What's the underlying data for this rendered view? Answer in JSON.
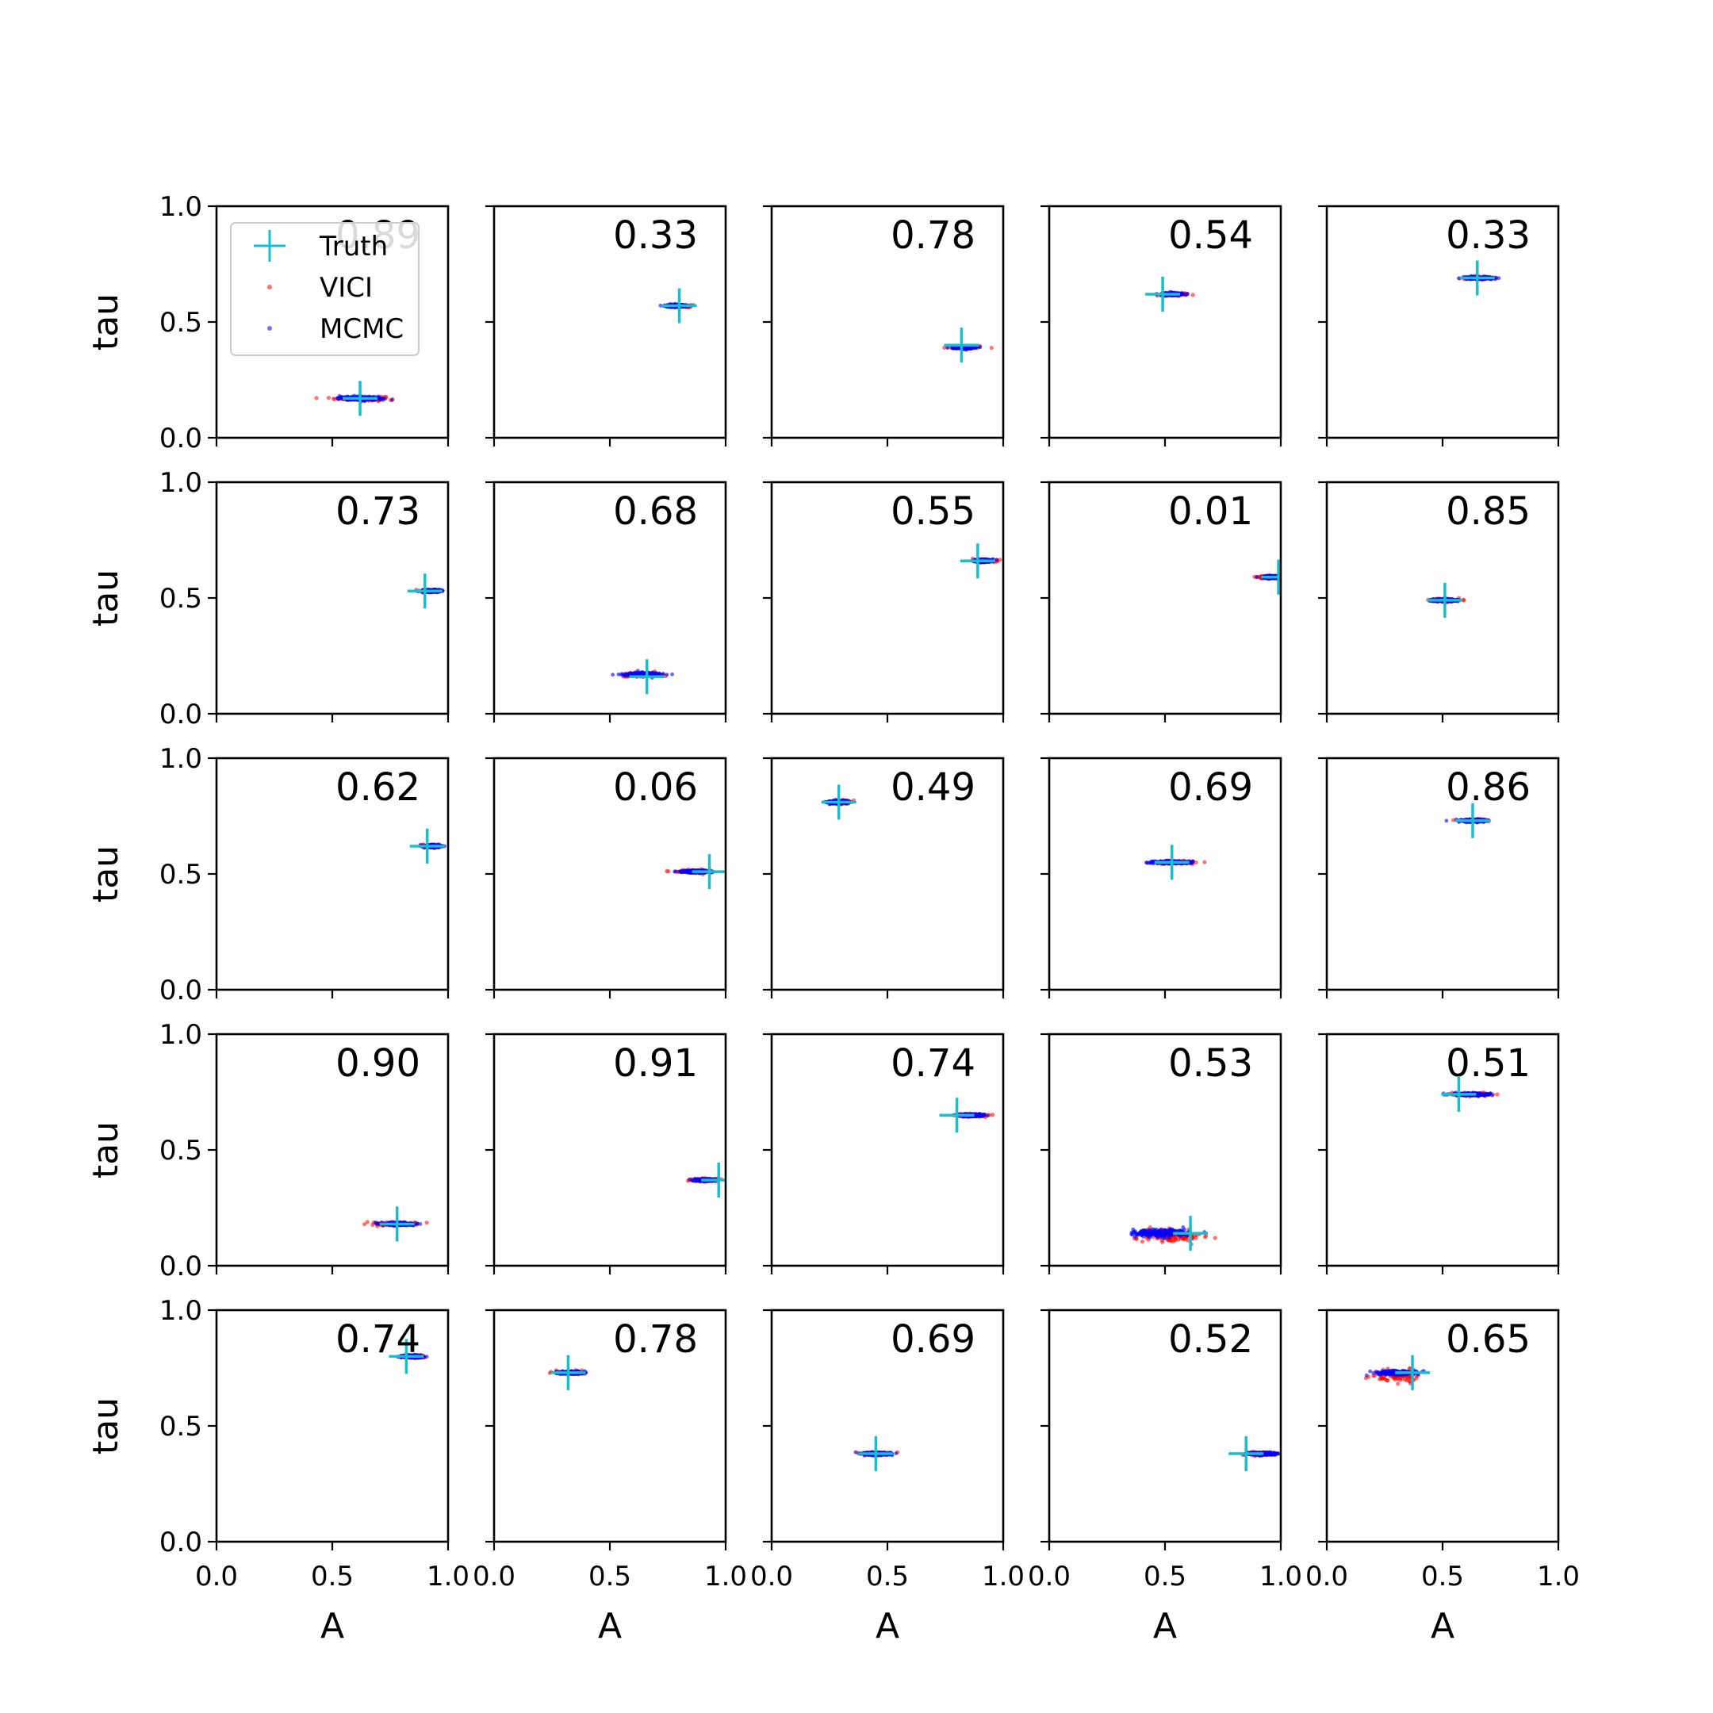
{
  "chart_data": {
    "type": "scatter",
    "layout": {
      "rows": 5,
      "cols": 5
    },
    "xlabel": "A",
    "ylabel": "tau",
    "xlim": [
      0,
      1
    ],
    "ylim": [
      0,
      1
    ],
    "xticks": [
      "0.0",
      "0.5",
      "1.0"
    ],
    "yticks": [
      "0.0",
      "0.5",
      "1.0"
    ],
    "legend": {
      "placement": "upper-left",
      "panel": 0,
      "entries": [
        {
          "label": "Truth",
          "marker": "plus",
          "color": "#17becf"
        },
        {
          "label": "VICI",
          "marker": "dot",
          "color": "#ff0000"
        },
        {
          "label": "MCMC",
          "marker": "dot",
          "color": "#0000ff"
        }
      ]
    },
    "colors": {
      "truth": "#17becf",
      "vici": "#ff0000",
      "mcmc": "#0000ff",
      "axes": "#000000",
      "background": "#ffffff"
    },
    "panels": [
      {
        "value": "0.89",
        "truth": [
          0.62,
          0.17
        ],
        "vici": {
          "center": [
            0.62,
            0.17
          ],
          "spread": [
            0.14,
            0.012
          ]
        },
        "mcmc": {
          "center": [
            0.62,
            0.17
          ],
          "spread": [
            0.12,
            0.01
          ]
        }
      },
      {
        "value": "0.33",
        "truth": [
          0.8,
          0.57
        ],
        "vici": {
          "center": [
            0.79,
            0.57
          ],
          "spread": [
            0.07,
            0.008
          ]
        },
        "mcmc": {
          "center": [
            0.79,
            0.57
          ],
          "spread": [
            0.06,
            0.007
          ]
        }
      },
      {
        "value": "0.78",
        "truth": [
          0.82,
          0.4
        ],
        "vici": {
          "center": [
            0.83,
            0.39
          ],
          "spread": [
            0.07,
            0.008
          ]
        },
        "mcmc": {
          "center": [
            0.83,
            0.39
          ],
          "spread": [
            0.06,
            0.007
          ]
        }
      },
      {
        "value": "0.54",
        "truth": [
          0.49,
          0.62
        ],
        "vici": {
          "center": [
            0.53,
            0.62
          ],
          "spread": [
            0.07,
            0.008
          ]
        },
        "mcmc": {
          "center": [
            0.53,
            0.62
          ],
          "spread": [
            0.06,
            0.007
          ]
        }
      },
      {
        "value": "0.33",
        "truth": [
          0.65,
          0.69
        ],
        "vici": {
          "center": [
            0.66,
            0.69
          ],
          "spread": [
            0.08,
            0.008
          ]
        },
        "mcmc": {
          "center": [
            0.66,
            0.69
          ],
          "spread": [
            0.07,
            0.007
          ]
        }
      },
      {
        "value": "0.73",
        "truth": [
          0.9,
          0.53
        ],
        "vici": {
          "center": [
            0.93,
            0.53
          ],
          "spread": [
            0.05,
            0.008
          ]
        },
        "mcmc": {
          "center": [
            0.93,
            0.53
          ],
          "spread": [
            0.05,
            0.007
          ]
        }
      },
      {
        "value": "0.68",
        "truth": [
          0.66,
          0.16
        ],
        "vici": {
          "center": [
            0.64,
            0.17
          ],
          "spread": [
            0.11,
            0.012
          ]
        },
        "mcmc": {
          "center": [
            0.64,
            0.17
          ],
          "spread": [
            0.1,
            0.01
          ]
        }
      },
      {
        "value": "0.55",
        "truth": [
          0.89,
          0.66
        ],
        "vici": {
          "center": [
            0.92,
            0.66
          ],
          "spread": [
            0.06,
            0.008
          ]
        },
        "mcmc": {
          "center": [
            0.92,
            0.66
          ],
          "spread": [
            0.05,
            0.007
          ]
        }
      },
      {
        "value": "0.01",
        "truth": [
          0.99,
          0.59
        ],
        "vici": {
          "center": [
            0.95,
            0.59
          ],
          "spread": [
            0.05,
            0.008
          ]
        },
        "mcmc": {
          "center": [
            0.96,
            0.59
          ],
          "spread": [
            0.04,
            0.007
          ]
        }
      },
      {
        "value": "0.85",
        "truth": [
          0.51,
          0.49
        ],
        "vici": {
          "center": [
            0.51,
            0.49
          ],
          "spread": [
            0.08,
            0.008
          ]
        },
        "mcmc": {
          "center": [
            0.51,
            0.49
          ],
          "spread": [
            0.07,
            0.007
          ]
        }
      },
      {
        "value": "0.62",
        "truth": [
          0.91,
          0.62
        ],
        "vici": {
          "center": [
            0.93,
            0.62
          ],
          "spread": [
            0.05,
            0.008
          ]
        },
        "mcmc": {
          "center": [
            0.93,
            0.62
          ],
          "spread": [
            0.05,
            0.007
          ]
        }
      },
      {
        "value": "0.06",
        "truth": [
          0.93,
          0.51
        ],
        "vici": {
          "center": [
            0.87,
            0.51
          ],
          "spread": [
            0.09,
            0.008
          ]
        },
        "mcmc": {
          "center": [
            0.87,
            0.51
          ],
          "spread": [
            0.08,
            0.007
          ]
        }
      },
      {
        "value": "0.49",
        "truth": [
          0.29,
          0.81
        ],
        "vici": {
          "center": [
            0.29,
            0.81
          ],
          "spread": [
            0.07,
            0.01
          ]
        },
        "mcmc": {
          "center": [
            0.29,
            0.81
          ],
          "spread": [
            0.06,
            0.008
          ]
        }
      },
      {
        "value": "0.69",
        "truth": [
          0.53,
          0.55
        ],
        "vici": {
          "center": [
            0.53,
            0.55
          ],
          "spread": [
            0.12,
            0.008
          ]
        },
        "mcmc": {
          "center": [
            0.53,
            0.55
          ],
          "spread": [
            0.11,
            0.007
          ]
        }
      },
      {
        "value": "0.86",
        "truth": [
          0.63,
          0.73
        ],
        "vici": {
          "center": [
            0.63,
            0.73
          ],
          "spread": [
            0.08,
            0.008
          ]
        },
        "mcmc": {
          "center": [
            0.63,
            0.73
          ],
          "spread": [
            0.07,
            0.007
          ]
        }
      },
      {
        "value": "0.90",
        "truth": [
          0.78,
          0.18
        ],
        "vici": {
          "center": [
            0.77,
            0.18
          ],
          "spread": [
            0.12,
            0.01
          ]
        },
        "mcmc": {
          "center": [
            0.79,
            0.18
          ],
          "spread": [
            0.09,
            0.008
          ]
        }
      },
      {
        "value": "0.91",
        "truth": [
          0.97,
          0.37
        ],
        "vici": {
          "center": [
            0.91,
            0.37
          ],
          "spread": [
            0.07,
            0.008
          ]
        },
        "mcmc": {
          "center": [
            0.91,
            0.37
          ],
          "spread": [
            0.06,
            0.007
          ]
        }
      },
      {
        "value": "0.74",
        "truth": [
          0.8,
          0.65
        ],
        "vici": {
          "center": [
            0.86,
            0.65
          ],
          "spread": [
            0.08,
            0.008
          ]
        },
        "mcmc": {
          "center": [
            0.86,
            0.65
          ],
          "spread": [
            0.07,
            0.007
          ]
        }
      },
      {
        "value": "0.53",
        "truth": [
          0.61,
          0.14
        ],
        "vici": {
          "center": [
            0.52,
            0.13
          ],
          "spread": [
            0.18,
            0.035
          ]
        },
        "mcmc": {
          "center": [
            0.48,
            0.14
          ],
          "spread": [
            0.15,
            0.02
          ]
        }
      },
      {
        "value": "0.51",
        "truth": [
          0.57,
          0.74
        ],
        "vici": {
          "center": [
            0.62,
            0.74
          ],
          "spread": [
            0.1,
            0.008
          ]
        },
        "mcmc": {
          "center": [
            0.62,
            0.74
          ],
          "spread": [
            0.1,
            0.007
          ]
        }
      },
      {
        "value": "0.74",
        "truth": [
          0.82,
          0.8
        ],
        "vici": {
          "center": [
            0.85,
            0.8
          ],
          "spread": [
            0.07,
            0.008
          ]
        },
        "mcmc": {
          "center": [
            0.85,
            0.8
          ],
          "spread": [
            0.06,
            0.007
          ]
        }
      },
      {
        "value": "0.78",
        "truth": [
          0.32,
          0.73
        ],
        "vici": {
          "center": [
            0.33,
            0.73
          ],
          "spread": [
            0.08,
            0.008
          ]
        },
        "mcmc": {
          "center": [
            0.33,
            0.73
          ],
          "spread": [
            0.07,
            0.007
          ]
        }
      },
      {
        "value": "0.69",
        "truth": [
          0.45,
          0.38
        ],
        "vici": {
          "center": [
            0.44,
            0.38
          ],
          "spread": [
            0.09,
            0.008
          ]
        },
        "mcmc": {
          "center": [
            0.45,
            0.38
          ],
          "spread": [
            0.08,
            0.007
          ]
        }
      },
      {
        "value": "0.52",
        "truth": [
          0.85,
          0.38
        ],
        "vici": {
          "center": [
            0.91,
            0.38
          ],
          "spread": [
            0.09,
            0.008
          ]
        },
        "mcmc": {
          "center": [
            0.92,
            0.38
          ],
          "spread": [
            0.08,
            0.007
          ]
        }
      },
      {
        "value": "0.65",
        "truth": [
          0.37,
          0.73
        ],
        "vici": {
          "center": [
            0.3,
            0.72
          ],
          "spread": [
            0.12,
            0.035
          ]
        },
        "mcmc": {
          "center": [
            0.3,
            0.73
          ],
          "spread": [
            0.11,
            0.012
          ]
        }
      }
    ]
  }
}
